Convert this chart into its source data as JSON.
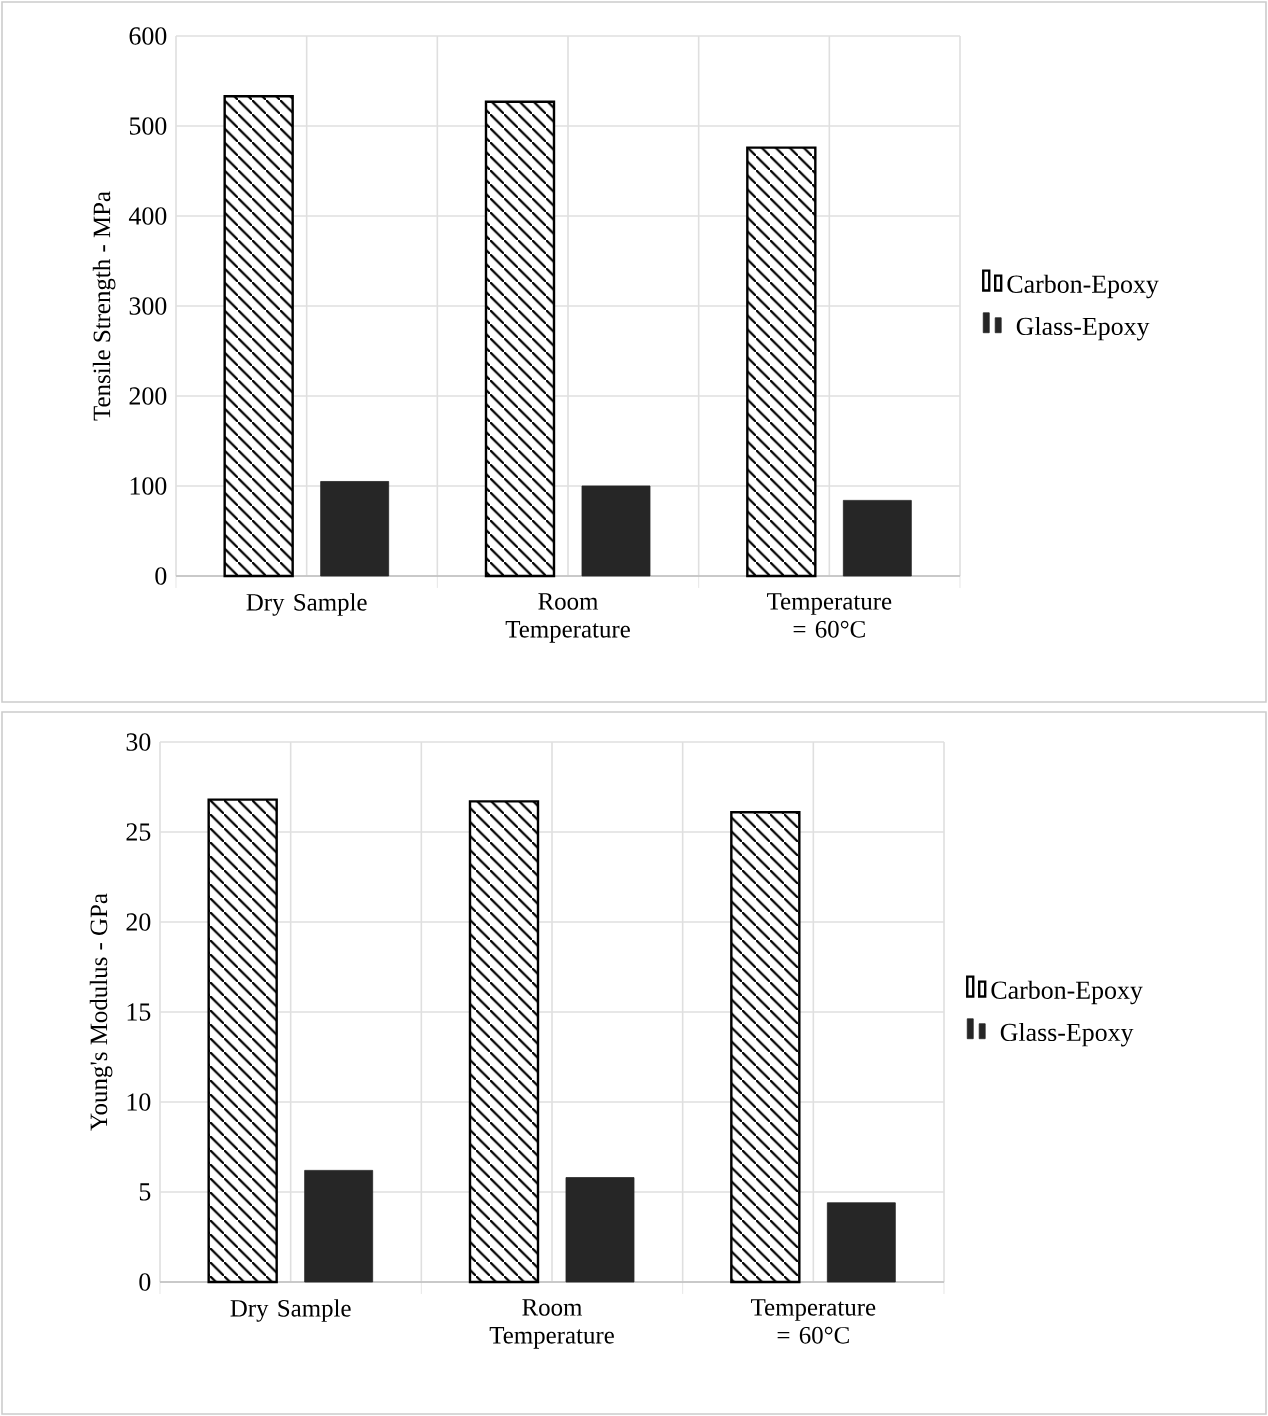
{
  "chart_data": [
    {
      "type": "bar",
      "ylabel": "Tensile Strength - MPa",
      "categories": [
        "Dry Sample",
        "Room Temperature",
        "Temperature = 60°C"
      ],
      "series": [
        {
          "name": "Carbon-Epoxy",
          "color": "#000000",
          "values": [
            533,
            527,
            476
          ]
        },
        {
          "name": "Glass-Epoxy",
          "color": "#262626",
          "values": [
            105,
            100,
            84
          ]
        }
      ],
      "ylim": [
        0,
        600
      ],
      "yticks": [
        0,
        100,
        200,
        300,
        400,
        500,
        600
      ],
      "grid": true,
      "legend": "right"
    },
    {
      "type": "bar",
      "ylabel": "Young's Modulus - GPa",
      "categories": [
        "Dry Sample",
        "Room Temperature",
        "Temperature = 60°C"
      ],
      "series": [
        {
          "name": "Carbon-Epoxy",
          "color": "#000000",
          "values": [
            26.8,
            26.7,
            26.1
          ]
        },
        {
          "name": "Glass-Epoxy",
          "color": "#262626",
          "values": [
            6.2,
            5.8,
            4.4
          ]
        }
      ],
      "ylim": [
        0,
        30
      ],
      "yticks": [
        0,
        5,
        10,
        15,
        20,
        25,
        30
      ],
      "grid": true,
      "legend": "right"
    }
  ]
}
